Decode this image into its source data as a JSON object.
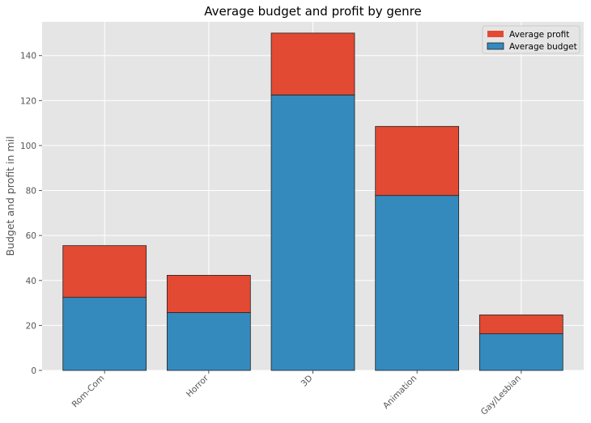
{
  "chart_data": {
    "type": "bar",
    "stacked": true,
    "title": "Average budget and profit by genre",
    "xlabel": "",
    "ylabel": "Budget and profit in mil",
    "categories": [
      "Rom-Com",
      "Horror",
      "3D",
      "Animation",
      "Gay/Lesbian"
    ],
    "series": [
      {
        "name": "Average budget",
        "color": "#348abd",
        "values": [
          32.5,
          25.7,
          122.5,
          77.8,
          16.3
        ]
      },
      {
        "name": "Average profit",
        "color": "#e24a33",
        "values": [
          23.0,
          16.6,
          27.5,
          30.7,
          8.4
        ]
      }
    ],
    "ylim": [
      0,
      155
    ],
    "yticks": [
      0,
      20,
      40,
      60,
      80,
      100,
      120,
      140
    ],
    "grid": true,
    "legend_position": "top-right",
    "legend_order": [
      "Average profit",
      "Average budget"
    ],
    "style": {
      "background": "#e5e5e5",
      "grid_color": "#ffffff",
      "edge_color": "#222222"
    }
  }
}
